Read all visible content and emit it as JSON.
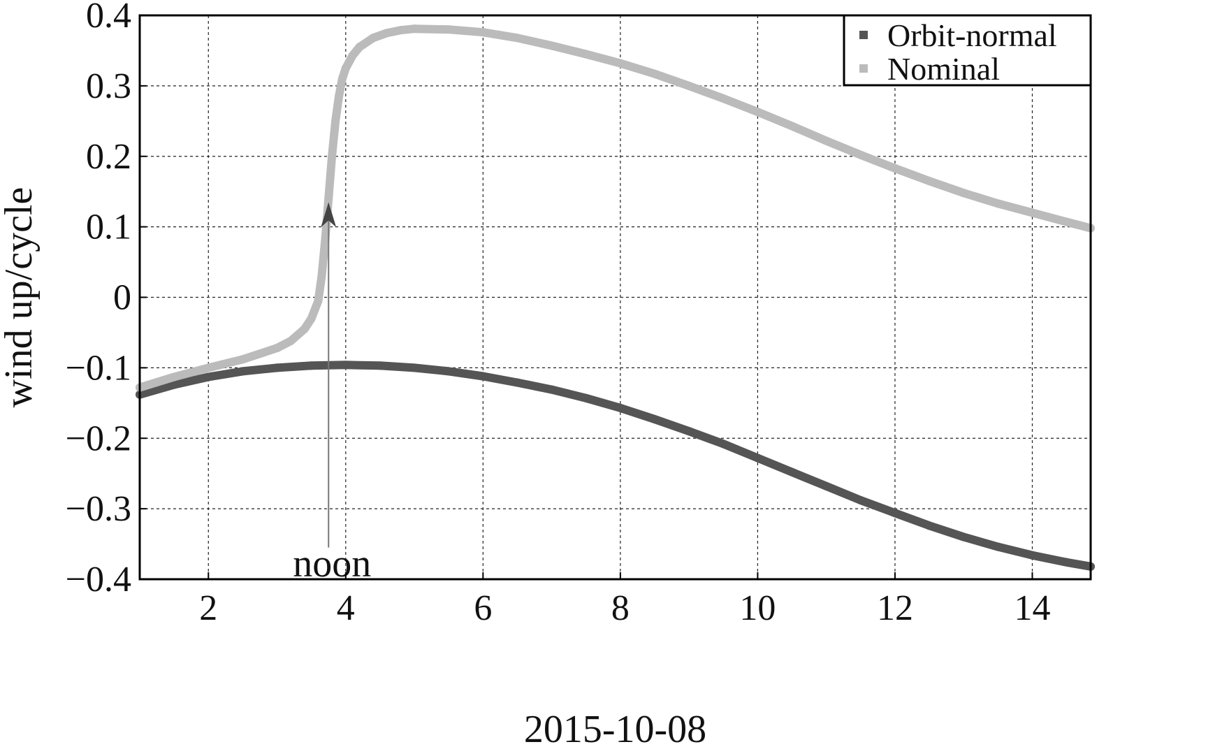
{
  "chart_data": {
    "type": "scatter",
    "title": "",
    "xlabel": "2015-10-08",
    "ylabel": "wind up/cycle",
    "xlim": [
      1.0,
      14.85
    ],
    "ylim": [
      -0.4,
      0.4
    ],
    "xticks": [
      2,
      4,
      6,
      8,
      10,
      12,
      14
    ],
    "xtick_labels": [
      "2",
      "4",
      "6",
      "8",
      "10",
      "12",
      "14"
    ],
    "yticks": [
      0.4,
      0.3,
      0.2,
      0.1,
      0,
      -0.1,
      -0.2,
      -0.3,
      -0.4
    ],
    "ytick_labels": [
      "0.4",
      "0.3",
      "0.2",
      "0.1",
      "0",
      "−0.1",
      "−0.2",
      "−0.3",
      "−0.4"
    ],
    "grid": true,
    "legend_position": "top-right",
    "series": [
      {
        "name": "Orbit-normal",
        "color": "#555555",
        "x": [
          1.0,
          1.5,
          2.0,
          2.5,
          3.0,
          3.5,
          4.0,
          4.5,
          5.0,
          5.5,
          6.0,
          6.5,
          7.0,
          7.5,
          8.0,
          8.5,
          9.0,
          9.5,
          10.0,
          10.5,
          11.0,
          11.5,
          12.0,
          12.5,
          13.0,
          13.5,
          14.0,
          14.5,
          14.85
        ],
        "y": [
          -0.138,
          -0.124,
          -0.113,
          -0.105,
          -0.1,
          -0.097,
          -0.096,
          -0.097,
          -0.1,
          -0.105,
          -0.112,
          -0.121,
          -0.131,
          -0.143,
          -0.157,
          -0.173,
          -0.19,
          -0.208,
          -0.228,
          -0.248,
          -0.268,
          -0.288,
          -0.306,
          -0.324,
          -0.34,
          -0.354,
          -0.366,
          -0.376,
          -0.382
        ]
      },
      {
        "name": "Nominal",
        "color": "#bbbbbb",
        "x": [
          1.0,
          1.5,
          2.0,
          2.5,
          3.0,
          3.2,
          3.4,
          3.5,
          3.6,
          3.65,
          3.7,
          3.75,
          3.8,
          3.85,
          3.9,
          3.95,
          4.0,
          4.1,
          4.2,
          4.4,
          4.6,
          4.8,
          5.0,
          5.5,
          6.0,
          6.5,
          7.0,
          7.5,
          8.0,
          8.5,
          9.0,
          9.5,
          10.0,
          10.5,
          11.0,
          11.5,
          12.0,
          12.5,
          13.0,
          13.5,
          14.0,
          14.5,
          14.85
        ],
        "y": [
          -0.128,
          -0.113,
          -0.1,
          -0.088,
          -0.072,
          -0.062,
          -0.045,
          -0.03,
          -0.005,
          0.03,
          0.08,
          0.14,
          0.2,
          0.25,
          0.285,
          0.31,
          0.325,
          0.343,
          0.355,
          0.368,
          0.375,
          0.379,
          0.381,
          0.38,
          0.376,
          0.368,
          0.357,
          0.345,
          0.332,
          0.317,
          0.3,
          0.282,
          0.263,
          0.243,
          0.222,
          0.202,
          0.183,
          0.165,
          0.148,
          0.133,
          0.12,
          0.107,
          0.098
        ]
      }
    ],
    "annotations": [
      {
        "text": "noon",
        "x": 3.75,
        "arrow_from_y": -0.355,
        "arrow_to_y": 0.135
      }
    ]
  }
}
